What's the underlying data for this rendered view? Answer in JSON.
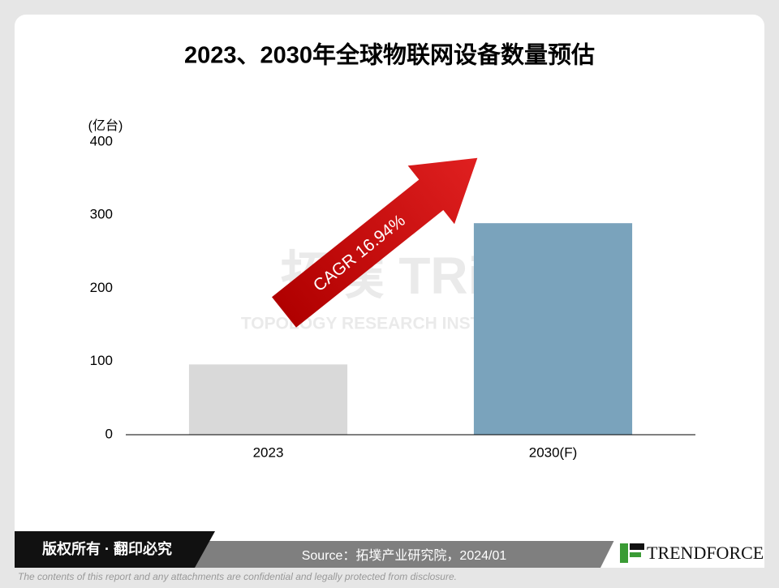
{
  "chart_data": {
    "type": "bar",
    "title": "2023、2030年全球物联网设备数量预估",
    "y_unit": "(亿台)",
    "categories": [
      "2023",
      "2030(F)"
    ],
    "values": [
      96,
      289
    ],
    "colors": [
      "#d9d9d9",
      "#7aa3bc"
    ],
    "ylim": [
      0,
      400
    ],
    "yticks": [
      0,
      100,
      200,
      300,
      400
    ],
    "grid": false,
    "annotation": "CAGR 16.94%",
    "watermark": [
      "拓墣 TRi",
      "TOPOLOGY RESEARCH INSTITUTE"
    ]
  },
  "footer": {
    "copyright": "版权所有 · 翻印必究",
    "source": "Source：拓墣产业研究院，2024/01",
    "logo": "TRENDFORCE",
    "disclaimer": "The contents of this report and any attachments are confidential and legally protected from disclosure."
  }
}
